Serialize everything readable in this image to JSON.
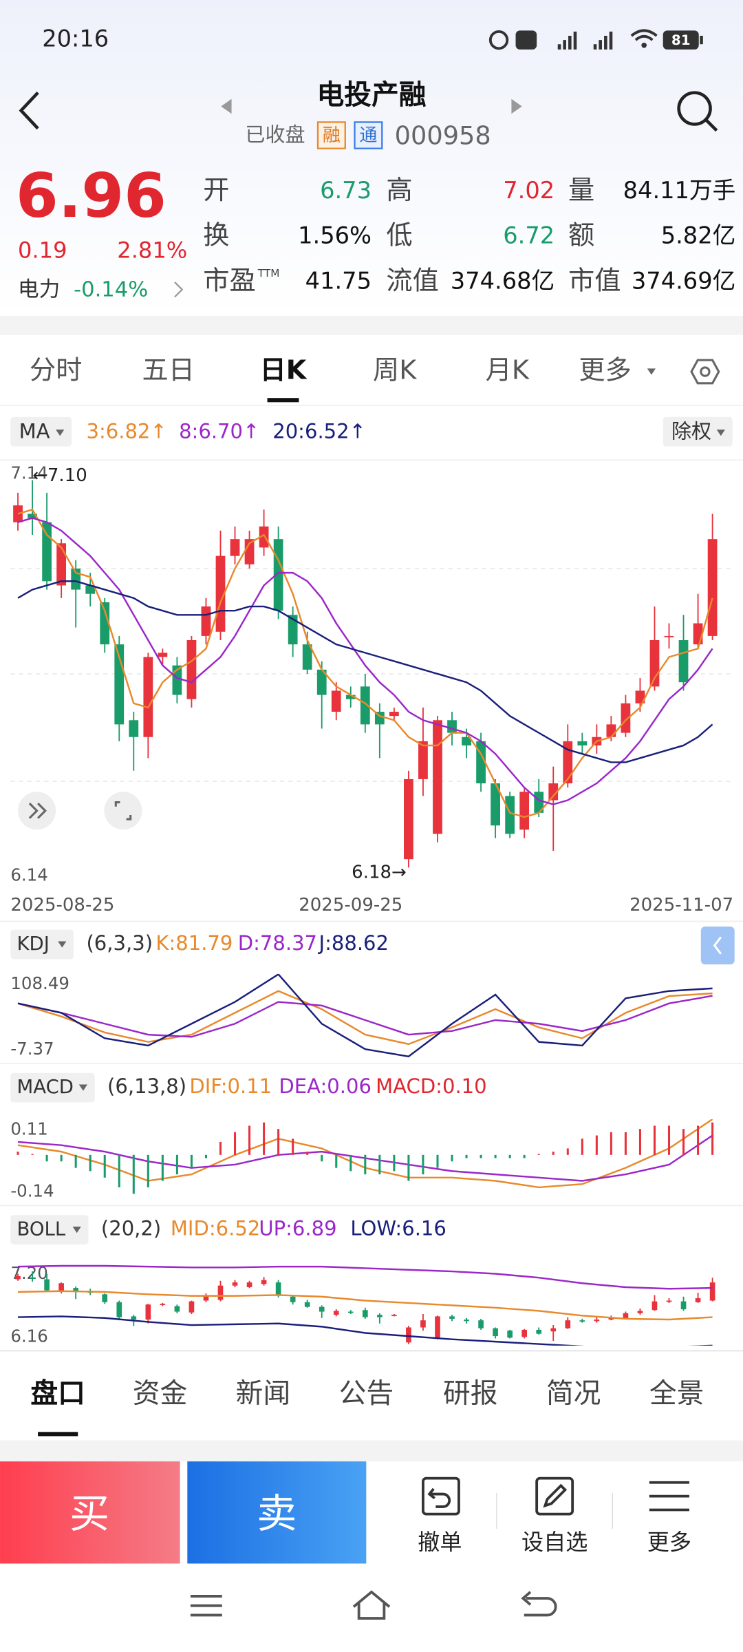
{
  "status_bar": {
    "time": "20:16",
    "battery": "81"
  },
  "header": {
    "title": "电投产融",
    "status": "已收盘",
    "badges": [
      "融",
      "通"
    ],
    "code": "000958"
  },
  "quote": {
    "price": "6.96",
    "change": "0.19",
    "change_pct": "2.81%",
    "sector": "电力",
    "sector_change": "-0.14%"
  },
  "fields": [
    {
      "label": "开",
      "value": "6.73",
      "color": "#1a9c6a"
    },
    {
      "label": "高",
      "value": "7.02",
      "color": "#e0262f"
    },
    {
      "label": "量",
      "value": "84.11万手",
      "color": "#111111"
    },
    {
      "label": "换",
      "value": "1.56%",
      "color": "#111111"
    },
    {
      "label": "低",
      "value": "6.72",
      "color": "#1a9c6a"
    },
    {
      "label": "额",
      "value": "5.82亿",
      "color": "#111111"
    },
    {
      "label": "市盈",
      "sup": "TTM",
      "value": "41.75",
      "color": "#111111"
    },
    {
      "label": "流值",
      "value": "374.68亿",
      "color": "#111111"
    },
    {
      "label": "市值",
      "value": "374.69亿",
      "color": "#111111"
    }
  ],
  "tabs": {
    "items": [
      "分时",
      "五日",
      "日K",
      "周K",
      "月K",
      "更多"
    ],
    "active": 2
  },
  "chart_data": [
    {
      "type": "candlestick",
      "legend_title": "MA",
      "adjust": "除权",
      "up_color": "#e8323c",
      "down_color": "#1a9c6a",
      "categories": [
        "2025-08-25",
        null,
        null,
        null,
        null,
        null,
        null,
        null,
        null,
        null,
        null,
        null,
        null,
        null,
        null,
        null,
        null,
        null,
        null,
        null,
        null,
        null,
        null,
        "2025-09-25",
        null,
        null,
        null,
        null,
        null,
        null,
        null,
        null,
        null,
        null,
        null,
        null,
        null,
        null,
        null,
        null,
        null,
        null,
        null,
        null,
        null,
        null,
        null,
        null,
        "2025-11-07"
      ],
      "open": [
        7.0,
        7.02,
        7.0,
        6.85,
        6.89,
        6.85,
        6.81,
        6.71,
        6.53,
        6.49,
        6.68,
        6.66,
        6.58,
        6.73,
        6.74,
        6.92,
        6.9,
        6.94,
        6.96,
        6.78,
        6.71,
        6.65,
        6.55,
        6.59,
        6.61,
        6.55,
        6.54,
        6.2,
        6.39,
        6.26,
        6.53,
        6.49,
        6.48,
        6.38,
        6.35,
        6.27,
        6.36,
        6.34,
        6.38,
        6.48,
        6.47,
        6.49,
        6.5,
        6.57,
        6.61,
        6.73,
        6.72,
        6.71,
        6.73
      ],
      "high": [
        7.07,
        7.1,
        7.07,
        6.96,
        6.91,
        6.88,
        6.82,
        6.73,
        6.55,
        6.69,
        6.7,
        6.68,
        6.73,
        6.82,
        6.98,
        6.99,
        6.98,
        7.03,
        6.99,
        6.8,
        6.74,
        6.67,
        6.62,
        6.61,
        6.64,
        6.57,
        6.56,
        6.41,
        6.56,
        6.54,
        6.55,
        6.51,
        6.5,
        6.39,
        6.36,
        6.37,
        6.39,
        6.42,
        6.52,
        6.5,
        6.52,
        6.54,
        6.59,
        6.63,
        6.8,
        6.76,
        6.78,
        6.83,
        7.02
      ],
      "low": [
        6.98,
        6.97,
        6.84,
        6.82,
        6.75,
        6.8,
        6.69,
        6.48,
        6.41,
        6.44,
        6.66,
        6.57,
        6.56,
        6.71,
        6.72,
        6.9,
        6.89,
        6.92,
        6.77,
        6.68,
        6.64,
        6.51,
        6.53,
        6.56,
        6.5,
        6.44,
        6.53,
        6.18,
        6.35,
        6.24,
        6.47,
        6.44,
        6.36,
        6.25,
        6.25,
        6.25,
        6.3,
        6.22,
        6.37,
        6.45,
        6.45,
        6.48,
        6.49,
        6.55,
        6.6,
        6.7,
        6.6,
        6.7,
        6.72
      ],
      "close": [
        7.04,
        7.01,
        6.86,
        6.95,
        6.84,
        6.83,
        6.71,
        6.52,
        6.49,
        6.68,
        6.69,
        6.59,
        6.72,
        6.8,
        6.92,
        6.96,
        6.96,
        6.99,
        6.79,
        6.71,
        6.65,
        6.59,
        6.6,
        6.58,
        6.52,
        6.52,
        6.55,
        6.39,
        6.48,
        6.53,
        6.5,
        6.47,
        6.38,
        6.28,
        6.26,
        6.36,
        6.31,
        6.38,
        6.48,
        6.47,
        6.49,
        6.52,
        6.57,
        6.6,
        6.72,
        6.73,
        6.62,
        6.76,
        6.96
      ],
      "series": [
        {
          "name": "3:6.82↑",
          "color": "#e8892b",
          "values": [
            7.02,
            7.03,
            6.97,
            6.94,
            6.88,
            6.87,
            6.79,
            6.68,
            6.57,
            6.56,
            6.62,
            6.65,
            6.67,
            6.7,
            6.81,
            6.89,
            6.95,
            6.97,
            6.91,
            6.83,
            6.72,
            6.65,
            6.61,
            6.59,
            6.57,
            6.54,
            6.53,
            6.49,
            6.47,
            6.47,
            6.5,
            6.5,
            6.45,
            6.38,
            6.31,
            6.3,
            6.31,
            6.35,
            6.39,
            6.44,
            6.48,
            6.49,
            6.53,
            6.56,
            6.63,
            6.68,
            6.69,
            6.7,
            6.82
          ]
        },
        {
          "name": "8:6.70↑",
          "color": "#9b27c9",
          "values": [
            7.0,
            7.01,
            7.0,
            6.98,
            6.95,
            6.92,
            6.88,
            6.84,
            6.78,
            6.72,
            6.66,
            6.63,
            6.62,
            6.65,
            6.68,
            6.73,
            6.79,
            6.85,
            6.88,
            6.88,
            6.86,
            6.82,
            6.76,
            6.71,
            6.66,
            6.62,
            6.59,
            6.55,
            6.53,
            6.52,
            6.51,
            6.5,
            6.48,
            6.45,
            6.41,
            6.37,
            6.34,
            6.33,
            6.34,
            6.36,
            6.38,
            6.41,
            6.44,
            6.48,
            6.53,
            6.58,
            6.61,
            6.65,
            6.7
          ]
        },
        {
          "name": "20:6.52↑",
          "color": "#1a1f7a",
          "values": [
            6.82,
            6.84,
            6.85,
            6.86,
            6.86,
            6.85,
            6.84,
            6.83,
            6.82,
            6.8,
            6.79,
            6.78,
            6.78,
            6.78,
            6.79,
            6.79,
            6.8,
            6.8,
            6.79,
            6.77,
            6.75,
            6.73,
            6.71,
            6.7,
            6.69,
            6.68,
            6.67,
            6.66,
            6.65,
            6.64,
            6.63,
            6.62,
            6.6,
            6.57,
            6.54,
            6.52,
            6.5,
            6.48,
            6.46,
            6.45,
            6.44,
            6.43,
            6.43,
            6.44,
            6.45,
            6.46,
            6.47,
            6.49,
            6.52
          ]
        }
      ],
      "annotations": [
        {
          "text": "←7.10",
          "value": 7.1,
          "index": 1
        },
        {
          "text": "6.18→",
          "value": 6.18,
          "index": 27
        }
      ],
      "ylim": [
        6.14,
        7.14
      ],
      "yticks": [
        7.14,
        6.14
      ]
    },
    {
      "type": "line",
      "title": "KDJ",
      "subtitle": "(6,3,3)",
      "ylim": [
        -7.37,
        108.49
      ],
      "yticks": [
        108.49,
        -7.37
      ],
      "series": [
        {
          "name": "K:81.79",
          "color": "#e8892b",
          "values": [
            68,
            50,
            28,
            15,
            25,
            55,
            85,
            60,
            25,
            12,
            35,
            60,
            35,
            20,
            55,
            78,
            81.79
          ]
        },
        {
          "name": "D:78.37",
          "color": "#9b27c9",
          "values": [
            68,
            55,
            40,
            25,
            22,
            40,
            70,
            65,
            45,
            25,
            30,
            45,
            40,
            30,
            45,
            68,
            78.37
          ]
        },
        {
          "name": "J:88.62",
          "color": "#1a1f7a",
          "values": [
            68,
            55,
            20,
            10,
            40,
            70,
            108,
            40,
            5,
            -5,
            40,
            80,
            15,
            10,
            75,
            85,
            88.62
          ]
        }
      ]
    },
    {
      "type": "macd",
      "title": "MACD",
      "subtitle": "(6,13,8)",
      "ylim": [
        -0.14,
        0.11
      ],
      "yticks": [
        0.11,
        -0.14
      ],
      "up_color": "#e8323c",
      "down_color": "#1a9c6a",
      "series": [
        {
          "name": "DIF:0.11",
          "color": "#e8892b",
          "values": [
            0.03,
            0.01,
            -0.03,
            -0.08,
            -0.06,
            0.0,
            0.05,
            0.02,
            -0.04,
            -0.07,
            -0.07,
            -0.08,
            -0.1,
            -0.09,
            -0.04,
            0.02,
            0.11
          ]
        },
        {
          "name": "DEA:0.06",
          "color": "#9b27c9",
          "values": [
            0.04,
            0.03,
            0.01,
            -0.02,
            -0.04,
            -0.03,
            0.0,
            0.01,
            -0.01,
            -0.03,
            -0.05,
            -0.06,
            -0.07,
            -0.08,
            -0.06,
            -0.03,
            0.06
          ]
        }
      ],
      "histogram": {
        "name": "MACD:0.10",
        "color": "#e0262f",
        "values": [
          0.01,
          0.0,
          -0.02,
          -0.02,
          -0.04,
          -0.05,
          -0.07,
          -0.1,
          -0.12,
          -0.1,
          -0.08,
          -0.06,
          -0.04,
          -0.01,
          0.04,
          0.07,
          0.09,
          0.1,
          0.08,
          0.05,
          0.01,
          -0.02,
          -0.04,
          -0.05,
          -0.06,
          -0.06,
          -0.05,
          -0.08,
          -0.06,
          -0.04,
          -0.02,
          -0.01,
          -0.01,
          -0.01,
          -0.01,
          -0.01,
          0.0,
          0.01,
          0.02,
          0.05,
          0.06,
          0.07,
          0.07,
          0.08,
          0.09,
          0.09,
          0.08,
          0.09,
          0.1
        ]
      }
    },
    {
      "type": "boll",
      "title": "BOLL",
      "subtitle": "(20,2)",
      "ylim": [
        6.16,
        7.2
      ],
      "yticks": [
        {
          "value": 7.2,
          "label": "7.20"
        },
        6.16
      ],
      "series": [
        {
          "name": "MID:6.52",
          "color": "#e8892b",
          "values": [
            6.84,
            6.85,
            6.84,
            6.81,
            6.79,
            6.79,
            6.8,
            6.78,
            6.73,
            6.7,
            6.67,
            6.64,
            6.6,
            6.54,
            6.5,
            6.49,
            6.52
          ]
        },
        {
          "name": "UP:6.89",
          "color": "#9b27c9",
          "values": [
            7.16,
            7.17,
            7.17,
            7.16,
            7.15,
            7.15,
            7.16,
            7.16,
            7.14,
            7.12,
            7.1,
            7.07,
            7.02,
            6.95,
            6.9,
            6.88,
            6.89
          ]
        },
        {
          "name": "LOW:6.16",
          "color": "#1a1f7a",
          "values": [
            6.52,
            6.53,
            6.51,
            6.46,
            6.42,
            6.43,
            6.44,
            6.4,
            6.32,
            6.28,
            6.24,
            6.21,
            6.18,
            6.15,
            6.12,
            6.14,
            6.16
          ]
        }
      ]
    }
  ],
  "bottom_tabs": {
    "items": [
      "盘口",
      "资金",
      "新闻",
      "公告",
      "研报",
      "简况",
      "全景"
    ],
    "active": 0
  },
  "actions": {
    "buy": "买",
    "sell": "卖",
    "tools": [
      "撤单",
      "设自选",
      "更多"
    ]
  }
}
